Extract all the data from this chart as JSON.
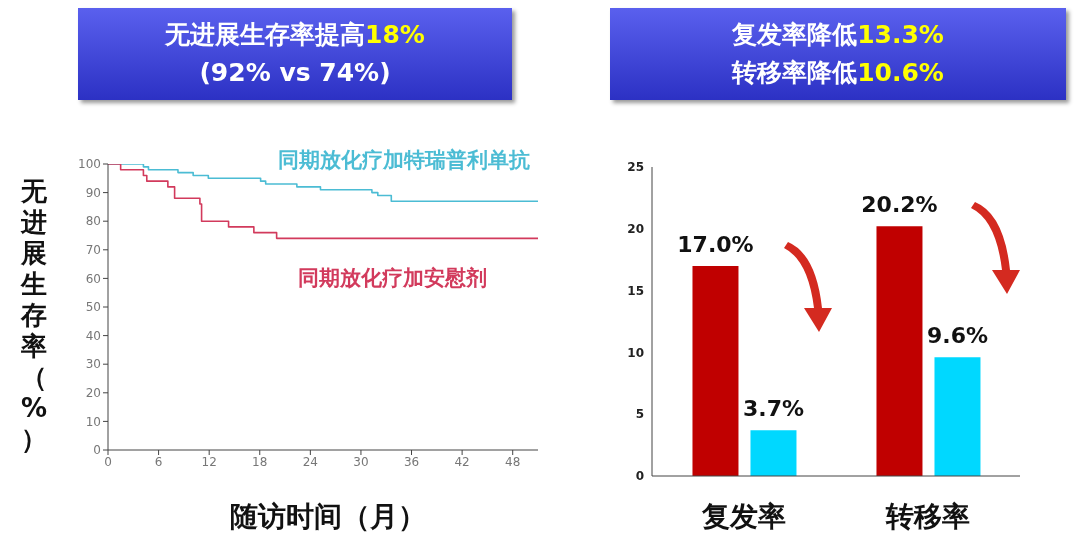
{
  "chart_data": [
    {
      "type": "step",
      "title": "无进展生存率提高18%",
      "subtitle": "(92% vs 74%)",
      "xlabel": "随访时间（月）",
      "ylabel": "无进展生存率（%）",
      "xlim": [
        0,
        51
      ],
      "xticks": [
        0,
        6,
        12,
        18,
        24,
        30,
        36,
        42,
        48
      ],
      "ylim": [
        0,
        100
      ],
      "yticks": [
        0,
        10,
        20,
        30,
        40,
        50,
        60,
        70,
        80,
        90,
        100
      ],
      "series": [
        {
          "name": "同期放化疗加特瑞普利单抗",
          "color": "#4bbcd4",
          "x": [
            0,
            4.2,
            4.8,
            8.3,
            10.1,
            11.9,
            18.1,
            18.7,
            22.4,
            25.2,
            31.3,
            32,
            33.6,
            51
          ],
          "values": [
            100,
            99,
            98,
            97,
            96,
            95,
            94,
            93,
            92,
            91,
            90,
            89,
            87,
            87
          ]
        },
        {
          "name": "同期放化疗加安慰剂",
          "color": "#d23a5c",
          "x": [
            0,
            1.5,
            4.2,
            4.6,
            7.1,
            7.9,
            10.9,
            11.1,
            14.3,
            17.3,
            20,
            51
          ],
          "values": [
            100,
            98,
            96,
            94,
            92,
            88,
            86,
            80,
            78,
            76,
            74,
            74
          ]
        }
      ]
    },
    {
      "type": "bar",
      "title": "复发率降低13.3%",
      "subtitle": "转移率降低10.6%",
      "categories": [
        "复发率",
        "转移率"
      ],
      "ylim": [
        0,
        25
      ],
      "yticks": [
        0,
        5,
        10,
        15,
        20,
        25
      ],
      "series": [
        {
          "color": "#c00000",
          "values": [
            17.0,
            20.2
          ],
          "value_labels": [
            "17.0%",
            "20.2%"
          ]
        },
        {
          "color": "#00d8ff",
          "values": [
            3.7,
            9.6
          ],
          "value_labels": [
            "3.7%",
            "9.6%"
          ]
        }
      ]
    }
  ]
}
